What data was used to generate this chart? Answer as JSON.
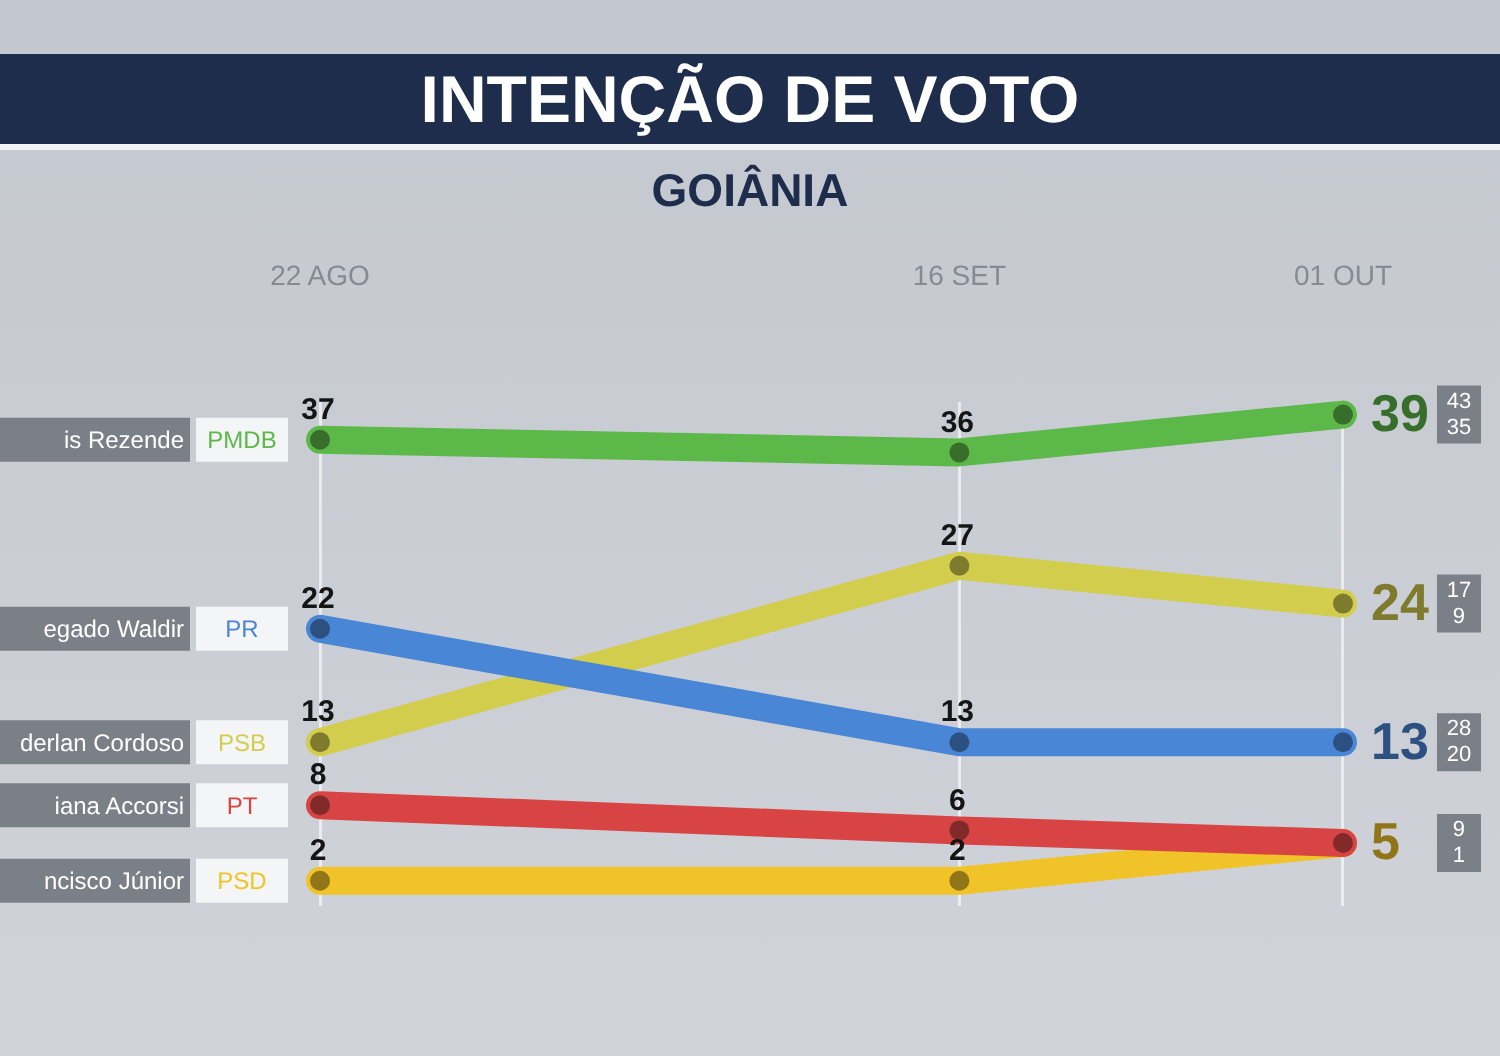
{
  "chart_data": {
    "type": "line",
    "title": "INTENÇÃO DE VOTO",
    "subtitle": "GOIÂNIA",
    "x": [
      "--08-22",
      "--09-16",
      "--10-01"
    ],
    "xlim": [
      "--08-22",
      "--10-01"
    ],
    "xticks": [
      {
        "value": "--08-22",
        "label": "22 AGO"
      },
      {
        "value": "--09-16",
        "label": "16 SET"
      },
      {
        "value": "--10-01",
        "label": "01 OUT"
      }
    ],
    "series": [
      {
        "name": "PMDB",
        "color": "#5cb848",
        "values": [
          37,
          36,
          39
        ],
        "value_labels": [
          "37",
          "36",
          "39"
        ]
      },
      {
        "name": "PR",
        "color": "#4a86d6",
        "values": [
          22,
          13,
          13
        ],
        "value_labels": [
          "22",
          "13",
          "13"
        ]
      },
      {
        "name": "PSB",
        "color": "#d2cd4c",
        "values": [
          13,
          27,
          24
        ],
        "value_labels": [
          "13",
          "27",
          "24"
        ]
      },
      {
        "name": "PT",
        "color": "#d84444",
        "values": [
          8,
          6,
          5
        ],
        "value_labels": [
          "8",
          "6",
          null
        ]
      },
      {
        "name": "PSD",
        "color": "#f0c428",
        "values": [
          2,
          2,
          5
        ],
        "value_labels": [
          "2",
          "2",
          "5"
        ]
      }
    ],
    "annotations": [
      "is Rezende",
      "egado Waldir",
      "derlan Cordoso",
      "iana Accorsi",
      "ncisco Júnior",
      "43\n35",
      "28\n20",
      "17\n9",
      "9\n1"
    ],
    "marker": "circle",
    "line_style": "solid",
    "grid": "x"
  }
}
